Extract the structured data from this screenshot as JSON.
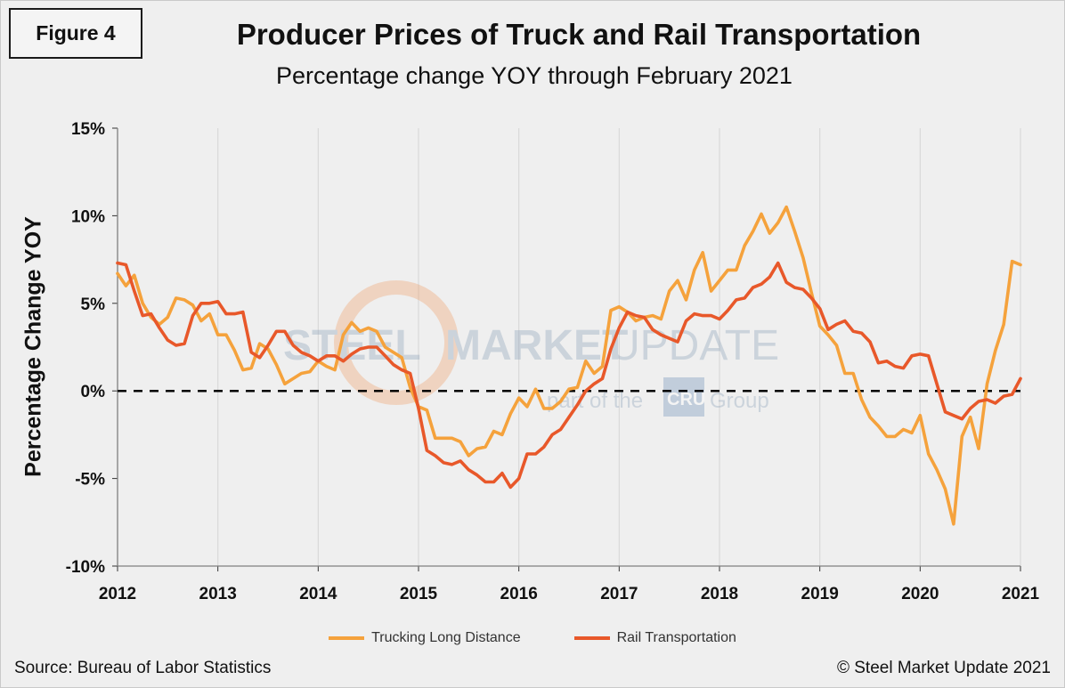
{
  "figure_label": "Figure 4",
  "source_text": "Source: Bureau of Labor Statistics",
  "copyright_text": "© Steel Market Update 2021",
  "watermark": {
    "text1": "STEEL",
    "text2": "MARKET",
    "text3": "UPDATE",
    "tagline_pre": "part of the",
    "tagline_logo": "CRU",
    "tagline_post": "Group"
  },
  "colors": {
    "trucking": "#f5a23c",
    "rail": "#e8582a",
    "zero_line": "#000000",
    "grid": "#d9d9d9"
  },
  "chart_data": {
    "type": "line",
    "title": "Producer Prices of Truck and Rail Transportation",
    "subtitle": "Percentage change YOY through February 2021",
    "xlabel": "",
    "ylabel": "Percentage Change YOY",
    "ylim": [
      -10,
      15
    ],
    "yticks": [
      -10,
      -5,
      0,
      5,
      10,
      15
    ],
    "ytick_labels": [
      "-10%",
      "-5%",
      "0%",
      "5%",
      "10%",
      "15%"
    ],
    "xlim": [
      2012.0,
      2021.0
    ],
    "xticks": [
      2012,
      2013,
      2014,
      2015,
      2016,
      2017,
      2018,
      2019,
      2020,
      2021
    ],
    "xtick_labels": [
      "2012",
      "2013",
      "2014",
      "2015",
      "2016",
      "2017",
      "2018",
      "2019",
      "2020",
      "2021"
    ],
    "zero_line": "dashed",
    "grid": "vertical",
    "legend_position": "bottom",
    "series": [
      {
        "name": "Trucking Long Distance",
        "color": "#f5a23c",
        "x": [
          2012.0,
          2012.083,
          2012.167,
          2012.25,
          2012.333,
          2012.417,
          2012.5,
          2012.583,
          2012.667,
          2012.75,
          2012.833,
          2012.917,
          2013.0,
          2013.083,
          2013.167,
          2013.25,
          2013.333,
          2013.417,
          2013.5,
          2013.583,
          2013.667,
          2013.75,
          2013.833,
          2013.917,
          2014.0,
          2014.083,
          2014.167,
          2014.25,
          2014.333,
          2014.417,
          2014.5,
          2014.583,
          2014.667,
          2014.75,
          2014.833,
          2014.917,
          2015.0,
          2015.083,
          2015.167,
          2015.25,
          2015.333,
          2015.417,
          2015.5,
          2015.583,
          2015.667,
          2015.75,
          2015.833,
          2015.917,
          2016.0,
          2016.083,
          2016.167,
          2016.25,
          2016.333,
          2016.417,
          2016.5,
          2016.583,
          2016.667,
          2016.75,
          2016.833,
          2016.917,
          2017.0,
          2017.083,
          2017.167,
          2017.25,
          2017.333,
          2017.417,
          2017.5,
          2017.583,
          2017.667,
          2017.75,
          2017.833,
          2017.917,
          2018.0,
          2018.083,
          2018.167,
          2018.25,
          2018.333,
          2018.417,
          2018.5,
          2018.583,
          2018.667,
          2018.75,
          2018.833,
          2018.917,
          2019.0,
          2019.083,
          2019.167,
          2019.25,
          2019.333,
          2019.417,
          2019.5,
          2019.583,
          2019.667,
          2019.75,
          2019.833,
          2019.917,
          2020.0,
          2020.083,
          2020.167,
          2020.25,
          2020.333,
          2020.417,
          2020.5,
          2020.583,
          2020.667,
          2020.75,
          2020.833,
          2020.917,
          2021.0
        ],
        "values": [
          6.7,
          6.0,
          6.6,
          5.0,
          4.2,
          3.8,
          4.2,
          5.3,
          5.2,
          4.9,
          4.0,
          4.4,
          3.2,
          3.2,
          2.3,
          1.2,
          1.3,
          2.7,
          2.4,
          1.5,
          0.4,
          0.7,
          1.0,
          1.1,
          1.7,
          1.4,
          1.2,
          3.2,
          3.9,
          3.4,
          3.6,
          3.4,
          2.5,
          2.2,
          1.9,
          0.2,
          -0.9,
          -1.1,
          -2.7,
          -2.7,
          -2.7,
          -2.9,
          -3.7,
          -3.3,
          -3.2,
          -2.3,
          -2.5,
          -1.3,
          -0.4,
          -0.9,
          0.1,
          -1.0,
          -1.0,
          -0.6,
          0.1,
          0.2,
          1.7,
          1.0,
          1.4,
          4.6,
          4.8,
          4.5,
          4.0,
          4.2,
          4.3,
          4.1,
          5.7,
          6.3,
          5.2,
          6.9,
          7.9,
          5.7,
          6.3,
          6.9,
          6.9,
          8.3,
          9.1,
          10.1,
          9.0,
          9.6,
          10.5,
          9.1,
          7.6,
          5.6,
          3.7,
          3.2,
          2.6,
          1.0,
          1.0,
          -0.5,
          -1.5,
          -2.0,
          -2.6,
          -2.6,
          -2.2,
          -2.4,
          -1.4,
          -3.6,
          -4.5,
          -5.6,
          -7.6,
          -2.6,
          -1.5,
          -3.3,
          0.4,
          2.3,
          3.8,
          7.4,
          7.2
        ]
      },
      {
        "name": "Rail Transportation",
        "color": "#e8582a",
        "x": [
          2012.0,
          2012.083,
          2012.167,
          2012.25,
          2012.333,
          2012.417,
          2012.5,
          2012.583,
          2012.667,
          2012.75,
          2012.833,
          2012.917,
          2013.0,
          2013.083,
          2013.167,
          2013.25,
          2013.333,
          2013.417,
          2013.5,
          2013.583,
          2013.667,
          2013.75,
          2013.833,
          2013.917,
          2014.0,
          2014.083,
          2014.167,
          2014.25,
          2014.333,
          2014.417,
          2014.5,
          2014.583,
          2014.667,
          2014.75,
          2014.833,
          2014.917,
          2015.0,
          2015.083,
          2015.167,
          2015.25,
          2015.333,
          2015.417,
          2015.5,
          2015.583,
          2015.667,
          2015.75,
          2015.833,
          2015.917,
          2016.0,
          2016.083,
          2016.167,
          2016.25,
          2016.333,
          2016.417,
          2016.5,
          2016.583,
          2016.667,
          2016.75,
          2016.833,
          2016.917,
          2017.0,
          2017.083,
          2017.167,
          2017.25,
          2017.333,
          2017.417,
          2017.5,
          2017.583,
          2017.667,
          2017.75,
          2017.833,
          2017.917,
          2018.0,
          2018.083,
          2018.167,
          2018.25,
          2018.333,
          2018.417,
          2018.5,
          2018.583,
          2018.667,
          2018.75,
          2018.833,
          2018.917,
          2019.0,
          2019.083,
          2019.167,
          2019.25,
          2019.333,
          2019.417,
          2019.5,
          2019.583,
          2019.667,
          2019.75,
          2019.833,
          2019.917,
          2020.0,
          2020.083,
          2020.167,
          2020.25,
          2020.333,
          2020.417,
          2020.5,
          2020.583,
          2020.667,
          2020.75,
          2020.833,
          2020.917,
          2021.0
        ],
        "values": [
          7.3,
          7.2,
          5.7,
          4.3,
          4.4,
          3.6,
          2.9,
          2.6,
          2.7,
          4.3,
          5.0,
          5.0,
          5.1,
          4.4,
          4.4,
          4.5,
          2.2,
          1.9,
          2.6,
          3.4,
          3.4,
          2.6,
          2.2,
          2.0,
          1.7,
          2.0,
          2.0,
          1.7,
          2.1,
          2.4,
          2.5,
          2.5,
          2.0,
          1.5,
          1.2,
          1.0,
          -1.0,
          -3.4,
          -3.7,
          -4.1,
          -4.2,
          -4.0,
          -4.5,
          -4.8,
          -5.2,
          -5.2,
          -4.7,
          -5.5,
          -5.0,
          -3.6,
          -3.6,
          -3.2,
          -2.5,
          -2.2,
          -1.5,
          -0.8,
          0.0,
          0.4,
          0.7,
          2.4,
          3.6,
          4.5,
          4.3,
          4.2,
          3.5,
          3.2,
          3.0,
          2.8,
          4.0,
          4.4,
          4.3,
          4.3,
          4.1,
          4.6,
          5.2,
          5.3,
          5.9,
          6.1,
          6.5,
          7.3,
          6.2,
          5.9,
          5.8,
          5.3,
          4.7,
          3.5,
          3.8,
          4.0,
          3.4,
          3.3,
          2.8,
          1.6,
          1.7,
          1.4,
          1.3,
          2.0,
          2.1,
          2.0,
          0.4,
          -1.2,
          -1.4,
          -1.6,
          -1.0,
          -0.6,
          -0.5,
          -0.7,
          -0.3,
          -0.2,
          0.7
        ]
      }
    ]
  }
}
